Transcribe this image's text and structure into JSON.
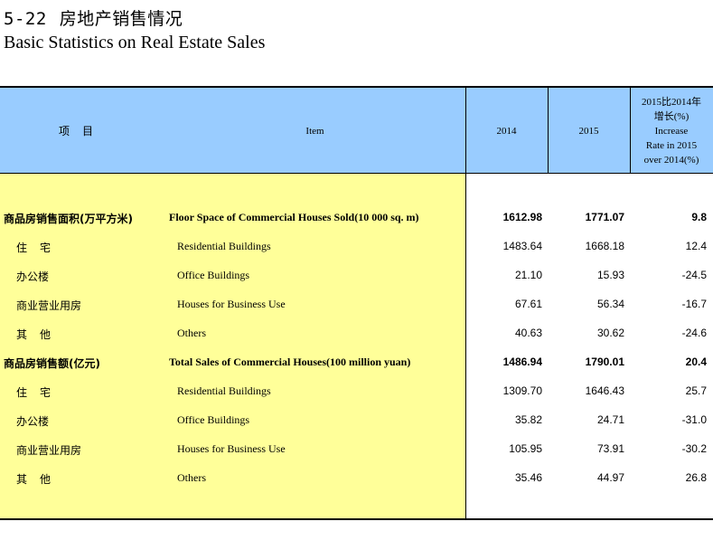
{
  "title": {
    "number": "5-22",
    "cn": "房地产销售情况",
    "en": "Basic Statistics on Real Estate Sales"
  },
  "header": {
    "item_cn": "项目",
    "item_en": "Item",
    "col_2014": "2014",
    "col_2015": "2015",
    "col_growth_line1": "2015比2014年",
    "col_growth_line2": "增长(%)",
    "col_growth_line3": "Increase",
    "col_growth_line4": "Rate in 2015",
    "col_growth_line5": "over 2014(%)"
  },
  "rows": [
    {
      "cn": "商品房销售面积(万平方米)",
      "en": "Floor Space of Commercial Houses Sold(10 000 sq. m)",
      "v2014": "1612.98",
      "v2015": "1771.07",
      "growth": "9.8"
    },
    {
      "cn": "住宅",
      "en": "Residential Buildings",
      "v2014": "1483.64",
      "v2015": "1668.18",
      "growth": "12.4"
    },
    {
      "cn": "办公楼",
      "en": "Office Buildings",
      "v2014": "21.10",
      "v2015": "15.93",
      "growth": "-24.5"
    },
    {
      "cn": "商业营业用房",
      "en": "Houses for Business Use",
      "v2014": "67.61",
      "v2015": "56.34",
      "growth": "-16.7"
    },
    {
      "cn": "其他",
      "en": "Others",
      "v2014": "40.63",
      "v2015": "30.62",
      "growth": "-24.6"
    },
    {
      "cn": "商品房销售额(亿元)",
      "en": "Total Sales of Commercial Houses(100 million yuan)",
      "v2014": "1486.94",
      "v2015": "1790.01",
      "growth": "20.4"
    },
    {
      "cn": "住宅",
      "en": "Residential Buildings",
      "v2014": "1309.70",
      "v2015": "1646.43",
      "growth": "25.7"
    },
    {
      "cn": "办公楼",
      "en": "Office Buildings",
      "v2014": "35.82",
      "v2015": "24.71",
      "growth": "-31.0"
    },
    {
      "cn": "商业营业用房",
      "en": "Houses for Business Use",
      "v2014": "105.95",
      "v2015": "73.91",
      "growth": "-30.2"
    },
    {
      "cn": "其他",
      "en": "Others",
      "v2014": "35.46",
      "v2015": "44.97",
      "growth": "26.8"
    }
  ],
  "colors": {
    "header_bg": "#99ccff",
    "item_bg": "#ffff99"
  }
}
